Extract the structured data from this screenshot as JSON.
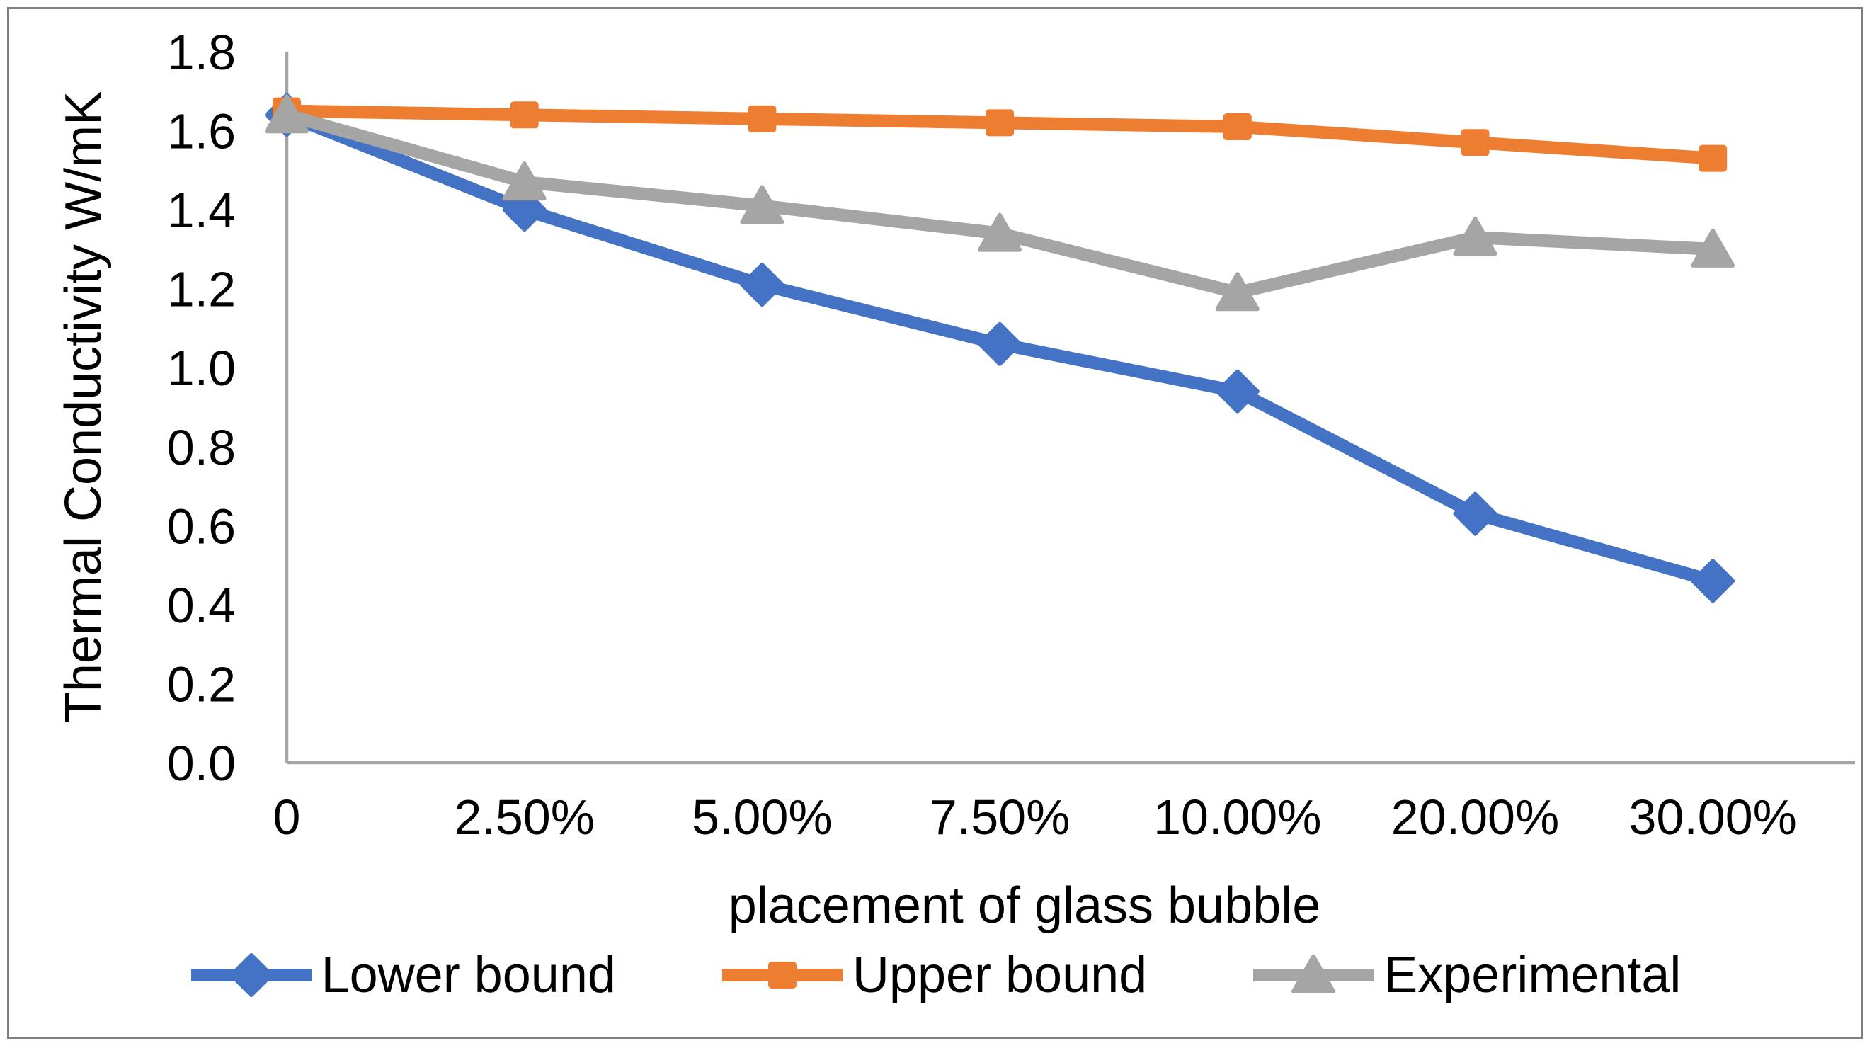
{
  "chart_data": {
    "type": "line",
    "title": "",
    "categories": [
      "0",
      "2.50%",
      "5.00%",
      "7.50%",
      "10.00%",
      "20.00%",
      "30.00%"
    ],
    "series": [
      {
        "name": "Lower bound",
        "color": "#4472C4",
        "marker": "diamond",
        "values": [
          1.64,
          1.4,
          1.21,
          1.06,
          0.94,
          0.63,
          0.46
        ]
      },
      {
        "name": "Upper bound",
        "color": "#ED7D31",
        "marker": "square",
        "values": [
          1.65,
          1.64,
          1.63,
          1.62,
          1.61,
          1.57,
          1.53
        ]
      },
      {
        "name": "Experimental",
        "color": "#A5A5A5",
        "marker": "triangle",
        "values": [
          1.64,
          1.47,
          1.41,
          1.34,
          1.19,
          1.33,
          1.3
        ]
      }
    ],
    "xlabel": "placement of glass bubble",
    "ylabel": "Thermal Conductivity W/mK",
    "ylim": [
      0,
      1.8
    ],
    "y_tick_labels": [
      "0.0",
      "0.2",
      "0.4",
      "0.6",
      "0.8",
      "1.0",
      "1.2",
      "1.4",
      "1.6",
      "1.8"
    ],
    "grid": false,
    "legend_position": "bottom",
    "axis_color": "#A6A6A6",
    "frame_color": "#808080",
    "text_color": "#000000",
    "background": "#FFFFFF"
  }
}
